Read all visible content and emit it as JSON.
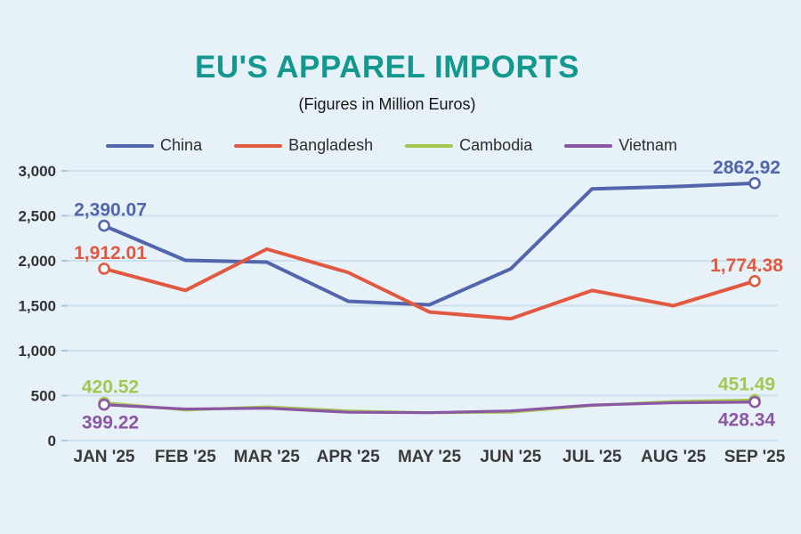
{
  "title": "EU'S APPAREL IMPORTS",
  "subtitle": "(Figures in Million Euros)",
  "colors": {
    "background": "#e7f2f8",
    "title": "#12988f",
    "grid": "#cbe2ee",
    "tick": "#a9cadb",
    "axis_text": "#333333",
    "x_label_text": "#3a3a3a"
  },
  "chart_data": {
    "type": "line",
    "title": "EU'S APPAREL IMPORTS",
    "subtitle": "(Figures in Million Euros)",
    "categories": [
      "JAN '25",
      "FEB '25",
      "MAR '25",
      "APR '25",
      "MAY '25",
      "JUN '25",
      "JUL '25",
      "AUG '25",
      "SEP '25"
    ],
    "ylim": [
      0,
      3000
    ],
    "yticks": [
      0,
      500,
      1000,
      1500,
      2000,
      2500,
      3000
    ],
    "ytick_labels": [
      "0",
      "500",
      "1,000",
      "1,500",
      "2,000",
      "2,500",
      "3,000"
    ],
    "grid": true,
    "legend_position": "top",
    "marker_style": "open-circle-endpoints",
    "series": [
      {
        "name": "China",
        "color": "#5365ac",
        "values": [
          2390.07,
          2005,
          1985,
          1550,
          1510,
          1910,
          2800,
          2825,
          2862.92
        ],
        "first_label": "2,390.07",
        "last_label": "2862.92",
        "label_position": "above"
      },
      {
        "name": "Bangladesh",
        "color": "#e25840",
        "values": [
          1912.01,
          1670,
          2130,
          1870,
          1430,
          1355,
          1670,
          1500,
          1774.38
        ],
        "first_label": "1,912.01",
        "last_label": "1,774.38",
        "label_position": "above"
      },
      {
        "name": "Cambodia",
        "color": "#a5c752",
        "values": [
          420.52,
          340,
          375,
          330,
          310,
          315,
          390,
          435,
          451.49
        ],
        "first_label": "420.52",
        "last_label": "451.49",
        "label_position": "above"
      },
      {
        "name": "Vietnam",
        "color": "#8b57a5",
        "values": [
          399.22,
          350,
          360,
          315,
          310,
          330,
          395,
          420,
          428.34
        ],
        "first_label": "399.22",
        "last_label": "428.34",
        "label_position": "below"
      }
    ]
  }
}
